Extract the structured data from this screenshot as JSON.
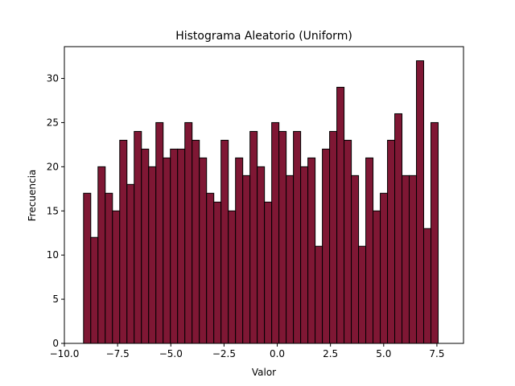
{
  "chart_data": {
    "type": "bar",
    "title": "Histograma Aleatorio (Uniform)",
    "xlabel": "Valor",
    "ylabel": "Frecuencia",
    "xlim": [
      -10.0,
      8.75
    ],
    "ylim": [
      0,
      33.6
    ],
    "bin_start": -9.1,
    "bin_width": 0.34,
    "values": [
      17,
      12,
      20,
      17,
      15,
      23,
      18,
      24,
      22,
      20,
      25,
      21,
      22,
      22,
      25,
      23,
      21,
      17,
      16,
      23,
      15,
      21,
      19,
      24,
      20,
      16,
      25,
      24,
      19,
      24,
      20,
      21,
      11,
      22,
      24,
      29,
      23,
      19,
      11,
      21,
      15,
      17,
      23,
      26,
      19,
      19,
      32,
      13,
      25
    ],
    "xticks": [
      -10.0,
      -7.5,
      -5.0,
      -2.5,
      0.0,
      2.5,
      5.0,
      7.5
    ],
    "xtick_labels": [
      "−10.0",
      "−7.5",
      "−5.0",
      "−2.5",
      "0.0",
      "2.5",
      "5.0",
      "7.5"
    ],
    "yticks": [
      0,
      5,
      10,
      15,
      20,
      25,
      30
    ],
    "ytick_labels": [
      "0",
      "5",
      "10",
      "15",
      "20",
      "25",
      "30"
    ],
    "bar_color": "#7f1734",
    "edge_color": "#000000",
    "grid": false
  }
}
